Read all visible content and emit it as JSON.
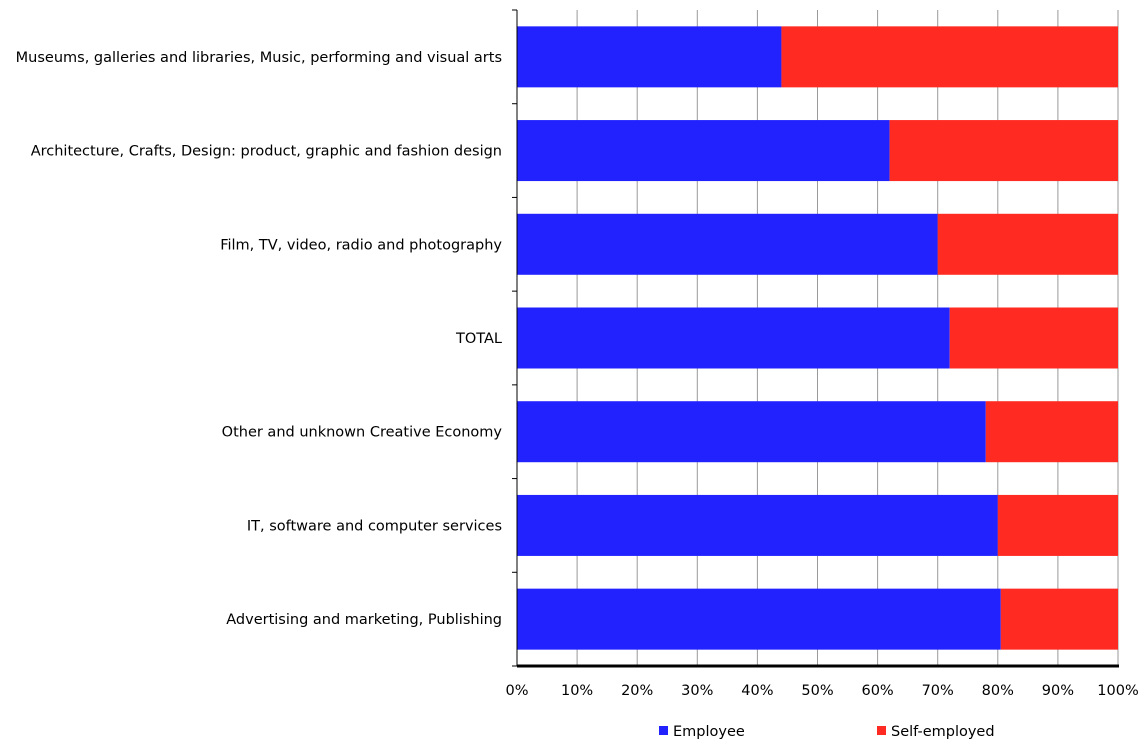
{
  "chart_data": {
    "type": "bar",
    "orientation": "horizontal",
    "stacked": true,
    "categories": [
      "Museums, galleries and libraries, Music, performing and visual arts",
      "Architecture, Crafts, Design: product, graphic and fashion design",
      "Film, TV, video, radio and photography",
      "TOTAL",
      "Other and unknown Creative Economy",
      "IT, software and computer services",
      "Advertising and marketing, Publishing"
    ],
    "series": [
      {
        "name": "Employee",
        "color": "#2222ff",
        "values": [
          44,
          62,
          70,
          72,
          78,
          80,
          80.5
        ]
      },
      {
        "name": "Self-employed",
        "color": "#ff2a22",
        "values": [
          56,
          38,
          30,
          28,
          22,
          20,
          19.5
        ]
      }
    ],
    "xlim": [
      0,
      100
    ],
    "x_ticks": [
      "0%",
      "10%",
      "20%",
      "30%",
      "40%",
      "50%",
      "60%",
      "70%",
      "80%",
      "90%",
      "100%"
    ],
    "grid": true,
    "legend_position": "bottom",
    "title": "",
    "xlabel": "",
    "ylabel": ""
  }
}
